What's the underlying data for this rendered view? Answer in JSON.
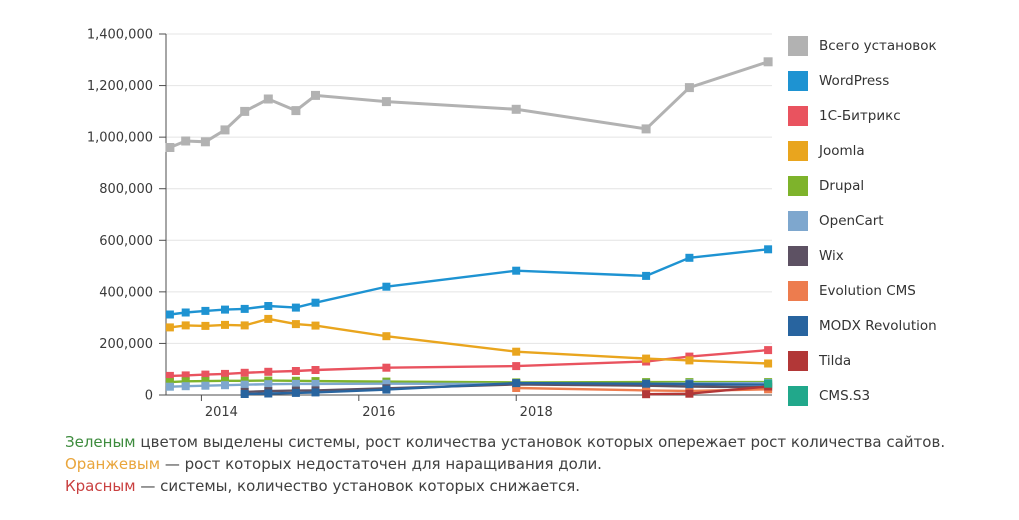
{
  "chart_data": {
    "type": "line",
    "title": "",
    "xlabel": "",
    "ylabel": "",
    "x_years": [
      2013.6,
      2013.8,
      2014.05,
      2014.3,
      2014.55,
      2014.85,
      2015.2,
      2015.45,
      2016.35,
      2018.0,
      2019.65,
      2020.2,
      2021.2
    ],
    "xticks": [
      {
        "value": 2014,
        "label": "2014"
      },
      {
        "value": 2016,
        "label": "2016"
      },
      {
        "value": 2018,
        "label": "2018"
      }
    ],
    "yticks": [
      0,
      200000,
      400000,
      600000,
      800000,
      1000000,
      1200000,
      1400000
    ],
    "ytick_labels": [
      "0",
      "200,000",
      "400,000",
      "600,000",
      "800,000",
      "1,000,000",
      "1,200,000",
      "1,400,000"
    ],
    "ylim": [
      0,
      1400000
    ],
    "grid": "horizontal-only",
    "legend_position": "right",
    "marker": "square",
    "series": [
      {
        "name": "Всего установок",
        "color": "#b2b2b2",
        "values": [
          960000,
          985000,
          982000,
          1028000,
          1100000,
          1148000,
          1103000,
          1162000,
          1138000,
          1108000,
          1032000,
          1192000,
          1292000
        ]
      },
      {
        "name": "WordPress",
        "color": "#1e93d2",
        "values": [
          312000,
          320000,
          326000,
          331000,
          334000,
          345000,
          339000,
          358000,
          420000,
          482000,
          462000,
          532000,
          565000
        ]
      },
      {
        "name": "1С-Битрикс",
        "color": "#e9535f",
        "values": [
          74000,
          76000,
          79000,
          82000,
          86000,
          90000,
          93000,
          97000,
          106000,
          112000,
          130000,
          149000,
          174000
        ]
      },
      {
        "name": "Joomla",
        "color": "#e9a51e",
        "values": [
          262000,
          270000,
          268000,
          272000,
          270000,
          295000,
          275000,
          269000,
          228000,
          168000,
          141000,
          134000,
          122000
        ]
      },
      {
        "name": "Drupal",
        "color": "#7eb32b",
        "values": [
          50000,
          53000,
          54000,
          55000,
          55000,
          56000,
          55000,
          54000,
          52000,
          49000,
          50000,
          50000,
          50000
        ]
      },
      {
        "name": "OpenCart",
        "color": "#7ea7ce",
        "values": [
          32000,
          34000,
          36000,
          38000,
          40000,
          42000,
          43000,
          43000,
          44000,
          43000,
          44000,
          45000,
          46000
        ]
      },
      {
        "name": "Wix",
        "color": "#5d5163",
        "values": [
          null,
          null,
          null,
          null,
          12000,
          15000,
          17000,
          18000,
          26000,
          41000,
          36000,
          33000,
          30000
        ]
      },
      {
        "name": "Evolution CMS",
        "color": "#ed7c4e",
        "values": [
          null,
          null,
          null,
          null,
          null,
          null,
          null,
          null,
          null,
          27000,
          18000,
          16000,
          22000
        ]
      },
      {
        "name": "MODX Revolution",
        "color": "#28649f",
        "values": [
          null,
          null,
          null,
          null,
          4000,
          6000,
          8000,
          10000,
          21000,
          46000,
          44000,
          42000,
          40000
        ]
      },
      {
        "name": "Tilda",
        "color": "#b23737",
        "values": [
          null,
          null,
          null,
          null,
          null,
          null,
          null,
          null,
          null,
          null,
          3000,
          5000,
          33000
        ]
      },
      {
        "name": "CMS.S3",
        "color": "#21a88b",
        "values": [
          null,
          null,
          null,
          null,
          null,
          null,
          null,
          null,
          null,
          null,
          null,
          null,
          44000
        ]
      }
    ]
  },
  "footnotes": [
    {
      "lead": "Зеленым",
      "lead_color": "#3d8b3d",
      "text": "цветом выделены системы, рост количества установок которых опережает рост количества сайтов."
    },
    {
      "lead": "Оранжевым",
      "lead_color": "#e9a53b",
      "text": "— рост которых недостаточен для наращивания доли."
    },
    {
      "lead": "Красным",
      "lead_color": "#c94040",
      "text": "— системы, количество установок которых снижается."
    }
  ],
  "style": {
    "grid_color": "#e4e4e4",
    "axis_color": "#4d4d4d",
    "tick_label_color": "#3a3a3a"
  }
}
